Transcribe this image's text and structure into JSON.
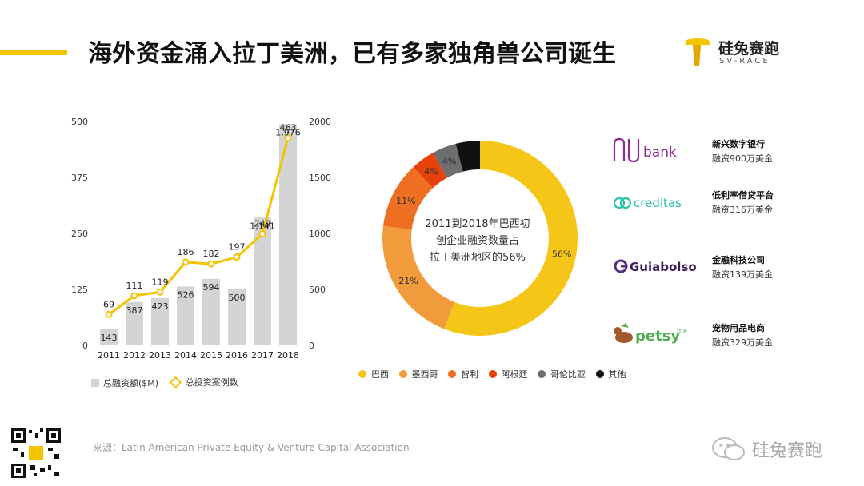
{
  "header": {
    "title": "海外资金涌入拉丁美洲，已有多家独角兽公司诞生",
    "brand_name": "硅兔赛跑",
    "brand_sub": "SV-RACE",
    "accent_color": "#f5c400"
  },
  "chart_data": [
    {
      "type": "bar",
      "categories": [
        "2011",
        "2012",
        "2013",
        "2014",
        "2015",
        "2016",
        "2017",
        "2018"
      ],
      "series": [
        {
          "name": "总融资额($M)",
          "type": "bar",
          "axis": "right",
          "values": [
            143,
            387,
            423,
            526,
            594,
            500,
            1141,
            1976
          ],
          "labels": [
            "143",
            "387",
            "423",
            "526",
            "594",
            "500",
            "1,141",
            "1,976"
          ],
          "color": "#d4d4d4"
        },
        {
          "name": "总投资案例数",
          "type": "line",
          "axis": "left",
          "values": [
            69,
            111,
            119,
            186,
            182,
            197,
            249,
            463
          ],
          "labels": [
            "69",
            "111",
            "119",
            "186",
            "182",
            "197",
            "249",
            "463"
          ],
          "color": "#f5c400"
        }
      ],
      "left_axis": {
        "ticks": [
          "0",
          "125",
          "250",
          "375",
          "500"
        ],
        "ylim": [
          0,
          500
        ]
      },
      "right_axis": {
        "ticks": [
          "0",
          "500",
          "1000",
          "1500",
          "2000"
        ],
        "ylim": [
          0,
          2000
        ]
      },
      "grid": false,
      "legend": "bottom"
    },
    {
      "type": "pie",
      "donut": true,
      "center_text": [
        "2011到2018年巴西初",
        "创企业融资数量占",
        "拉丁美洲地区的56%"
      ],
      "slices": [
        {
          "name": "巴西",
          "value": 56,
          "label": "56%",
          "color": "#f5c518"
        },
        {
          "name": "墨西哥",
          "value": 21,
          "label": "21%",
          "color": "#f29b3c"
        },
        {
          "name": "智利",
          "value": 11,
          "label": "11%",
          "color": "#ef6f22"
        },
        {
          "name": "阿根廷",
          "value": 4,
          "label": "4%",
          "color": "#e8420c"
        },
        {
          "name": "哥伦比亚",
          "value": 4,
          "label": "4%",
          "color": "#6e6e6e"
        },
        {
          "name": "其他",
          "value": 4,
          "label": "",
          "color": "#111111"
        }
      ],
      "legend": "bottom"
    }
  ],
  "companies": [
    {
      "logo": "nu bank",
      "name": "新兴数字银行",
      "funding": "融资900万美金"
    },
    {
      "logo": "creditas",
      "name": "低利率借贷平台",
      "funding": "融资316万美金"
    },
    {
      "logo": "Guiabolso",
      "name": "金融科技公司",
      "funding": "融资139万美金"
    },
    {
      "logo": "petsy",
      "logo_suffix": "mx",
      "name": "宠物用品电商",
      "funding": "融资329万美金"
    }
  ],
  "footer": {
    "source": "来源：Latin American Private Equity & Venture Capital Association",
    "wechat_name": "硅兔赛跑"
  }
}
